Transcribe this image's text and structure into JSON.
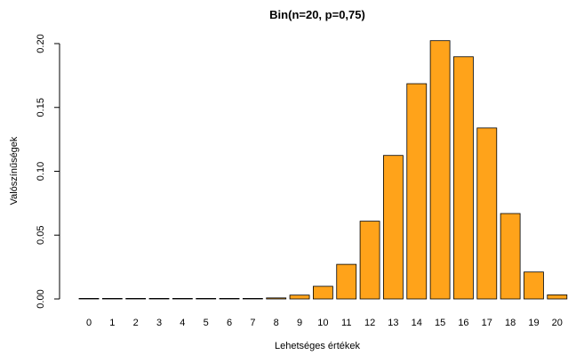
{
  "chart_data": {
    "type": "bar",
    "title": "Bin(n=20, p=0,75)",
    "xlabel": "Lehetséges értékek",
    "ylabel": "Valószínűségek",
    "categories": [
      "0",
      "1",
      "2",
      "3",
      "4",
      "5",
      "6",
      "7",
      "8",
      "9",
      "10",
      "11",
      "12",
      "13",
      "14",
      "15",
      "16",
      "17",
      "18",
      "19",
      "20"
    ],
    "values": [
      0.0,
      0.0,
      0.0,
      0.0,
      0.0,
      0.0,
      0.0,
      0.0,
      0.0008,
      0.003,
      0.0099,
      0.0271,
      0.0609,
      0.1124,
      0.1686,
      0.2023,
      0.1897,
      0.1339,
      0.0669,
      0.0211,
      0.0032
    ],
    "ylim": [
      0,
      0.21
    ],
    "yticks": [
      "0.00",
      "0.05",
      "0.10",
      "0.15",
      "0.20"
    ],
    "ytick_values": [
      0,
      0.05,
      0.1,
      0.15,
      0.2
    ],
    "bar_color": "#FFA31A",
    "grid": false
  }
}
